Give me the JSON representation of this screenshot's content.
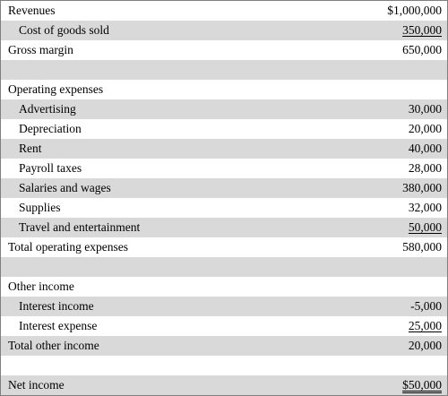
{
  "rows": [
    {
      "label": "Revenues",
      "amount": "$1,000,000"
    },
    {
      "label": "Cost of goods sold",
      "amount": "350,000"
    },
    {
      "label": "Gross margin",
      "amount": "650,000"
    },
    {
      "label": "",
      "amount": ""
    },
    {
      "label": "Operating expenses",
      "amount": ""
    },
    {
      "label": "Advertising",
      "amount": "30,000"
    },
    {
      "label": "Depreciation",
      "amount": "20,000"
    },
    {
      "label": "Rent",
      "amount": "40,000"
    },
    {
      "label": "Payroll taxes",
      "amount": "28,000"
    },
    {
      "label": "Salaries and wages",
      "amount": "380,000"
    },
    {
      "label": "Supplies",
      "amount": "32,000"
    },
    {
      "label": "Travel and entertainment",
      "amount": "50,000"
    },
    {
      "label": "Total operating expenses",
      "amount": "580,000"
    },
    {
      "label": "",
      "amount": ""
    },
    {
      "label": "Other income",
      "amount": ""
    },
    {
      "label": "Interest income",
      "amount": "-5,000"
    },
    {
      "label": "Interest expense",
      "amount": "25,000"
    },
    {
      "label": "Total other income",
      "amount": "20,000"
    },
    {
      "label": "",
      "amount": ""
    },
    {
      "label": "Net income",
      "amount": "$50,000"
    }
  ],
  "colors": {
    "row_shade": "#d9d9d9",
    "border": "#7f7f7f",
    "text": "#000000"
  }
}
